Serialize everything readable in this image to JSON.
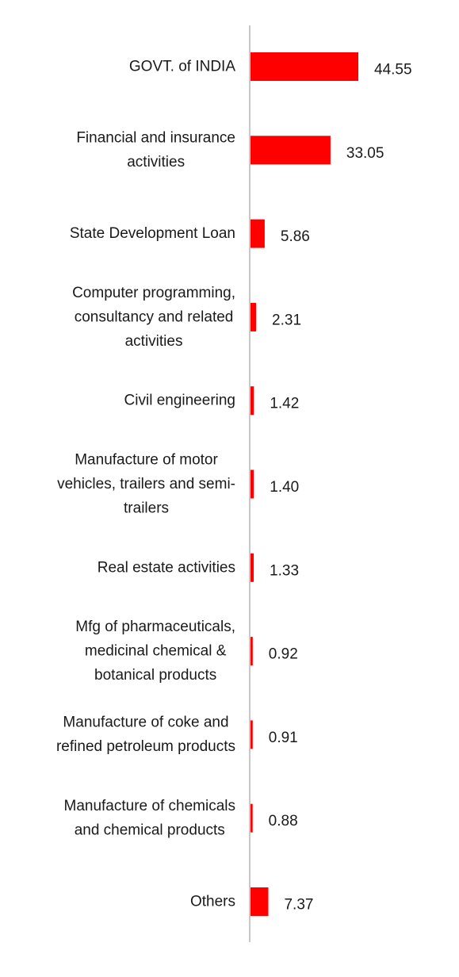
{
  "chart_data": {
    "type": "bar",
    "orientation": "horizontal",
    "categories": [
      "GOVT. of INDIA",
      "Financial and insurance activities",
      "State Development Loan",
      "Computer programming, consultancy and related activities",
      "Civil engineering",
      "Manufacture of motor vehicles, trailers and semi-trailers",
      "Real estate activities",
      "Mfg of pharmaceuticals, medicinal chemical & botanical products",
      "Manufacture of coke and refined petroleum products",
      "Manufacture of chemicals and chemical products",
      "Others"
    ],
    "category_lines": [
      [
        "GOVT. of INDIA"
      ],
      [
        "Financial and insurance",
        "activities"
      ],
      [
        "State Development Loan"
      ],
      [
        "Computer programming,",
        "consultancy and related",
        "activities"
      ],
      [
        "Civil engineering"
      ],
      [
        "Manufacture of motor",
        "vehicles, trailers and semi-",
        "trailers"
      ],
      [
        "Real estate activities"
      ],
      [
        "Mfg of pharmaceuticals,",
        "medicinal chemical &",
        "botanical products"
      ],
      [
        "Manufacture of coke and",
        "refined petroleum products"
      ],
      [
        "Manufacture of chemicals",
        "and chemical products"
      ],
      [
        "Others"
      ]
    ],
    "values": [
      44.55,
      33.05,
      5.86,
      2.31,
      1.42,
      1.4,
      1.33,
      0.92,
      0.91,
      0.88,
      7.37
    ],
    "value_labels": [
      "44.55",
      "33.05",
      "5.86",
      "2.31",
      "1.42",
      "1.40",
      "1.33",
      "0.92",
      "0.91",
      "0.88",
      "7.37"
    ],
    "title": "",
    "xlabel": "",
    "ylabel": "",
    "xlim": [
      0,
      44.55
    ],
    "grid": false,
    "legend": "none",
    "bar_color": "#ff0000",
    "axis_color": "#c8c8c8"
  }
}
